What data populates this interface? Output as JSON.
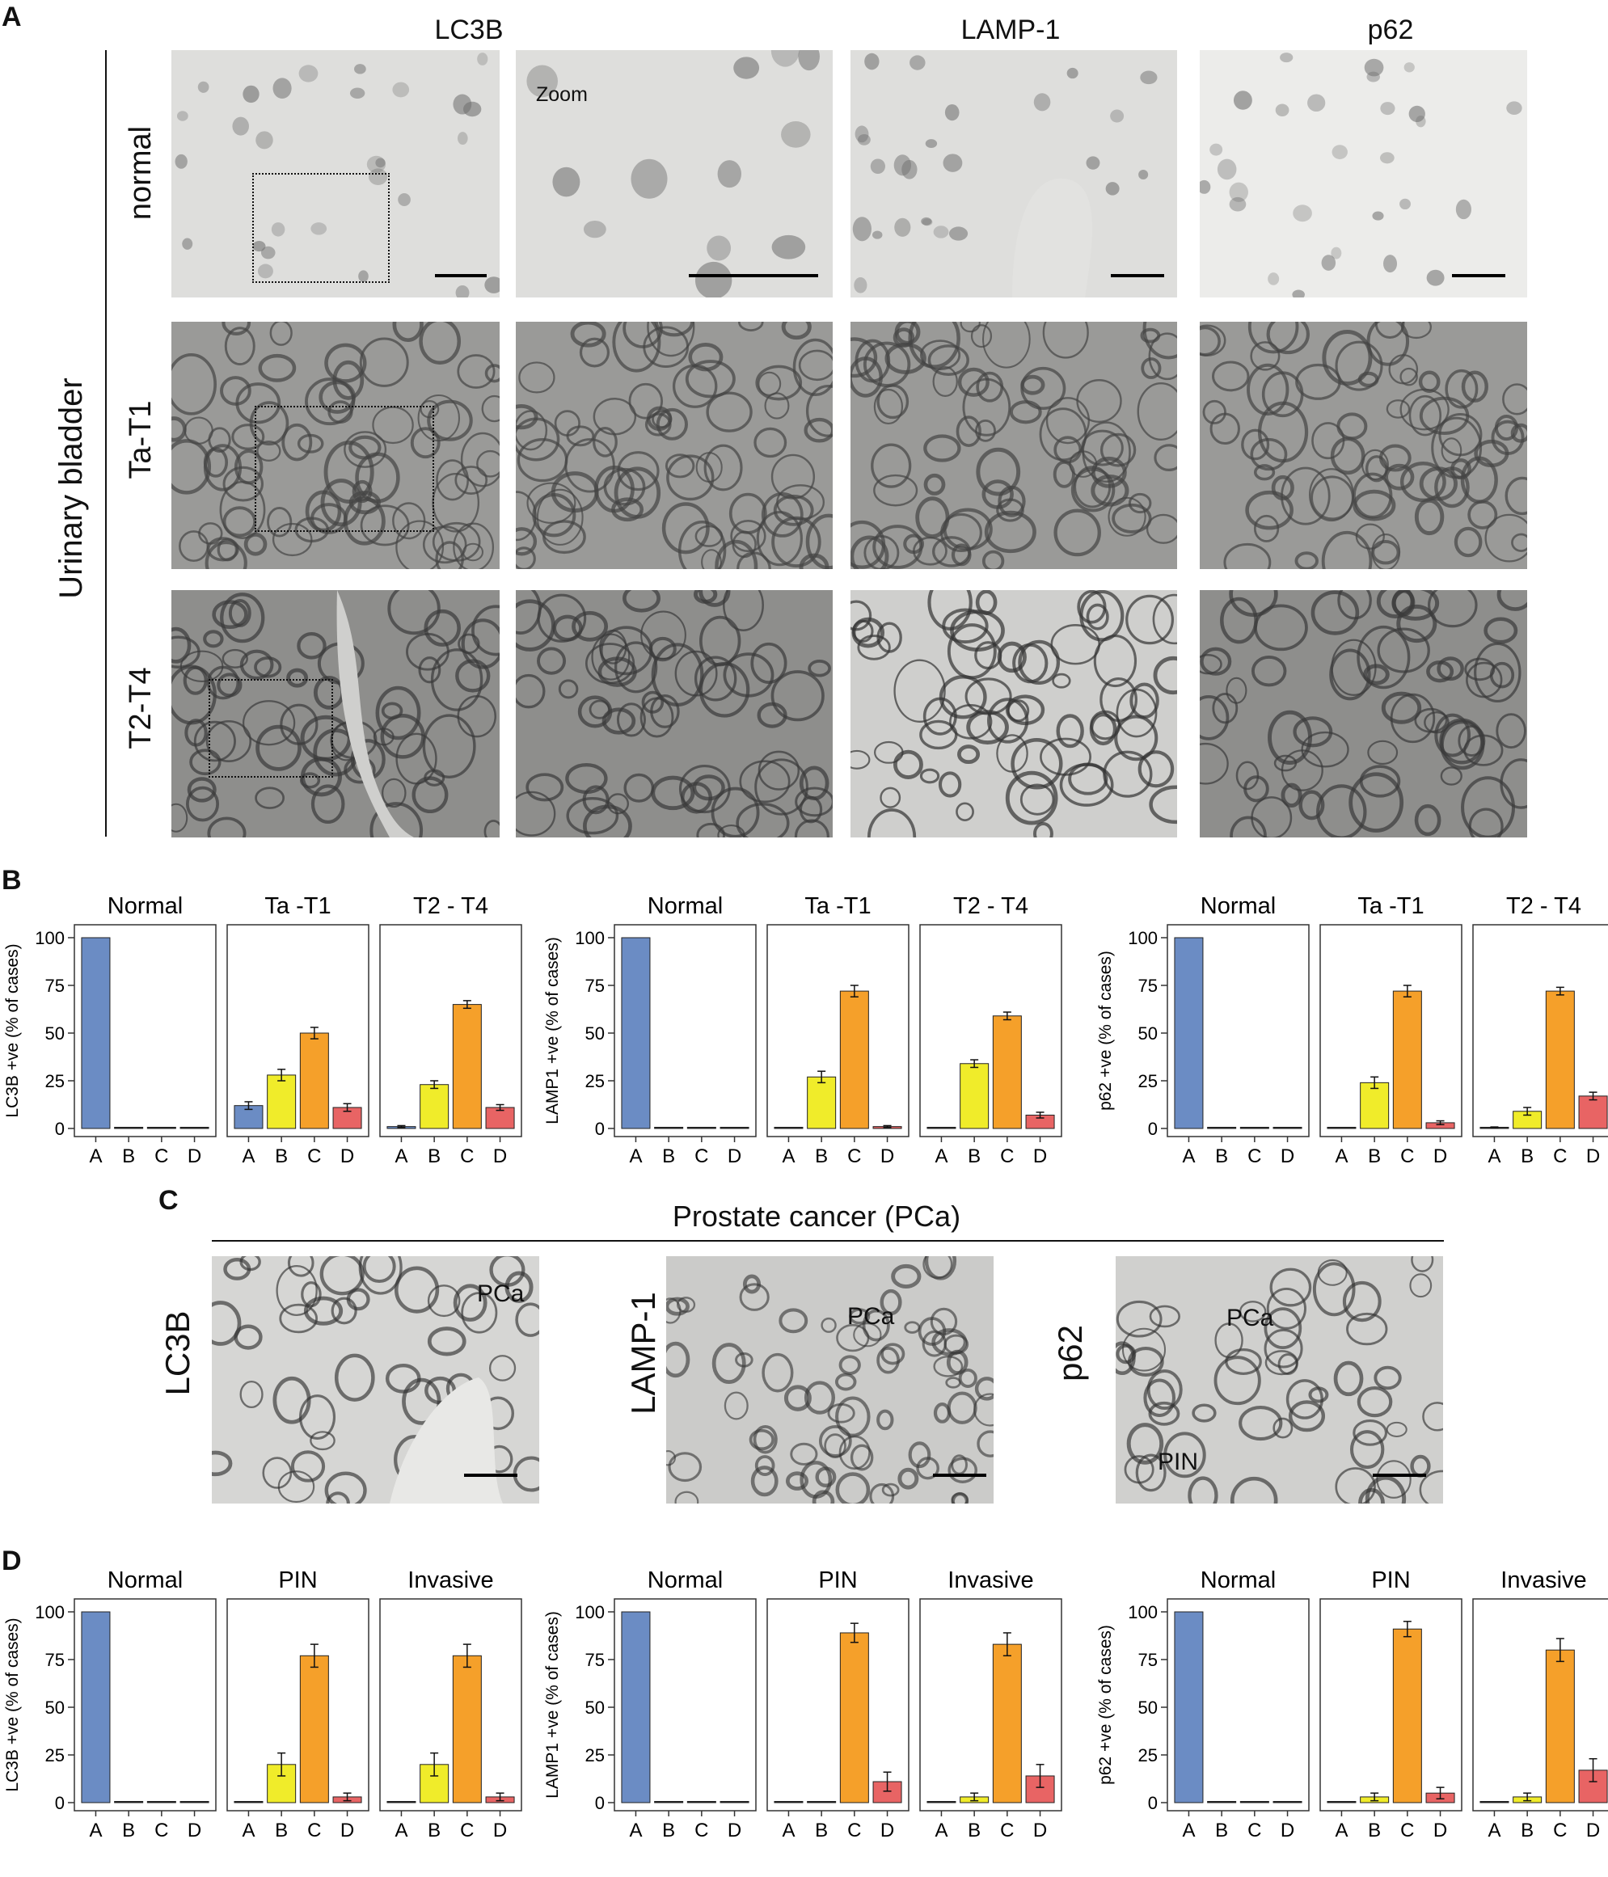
{
  "panel_letters": {
    "a": "A",
    "b": "B",
    "c": "C",
    "d": "D"
  },
  "panel_a": {
    "column_headers": [
      "LC3B",
      "LAMP-1",
      "p62"
    ],
    "row_headers": [
      "normal",
      "Ta-T1",
      "T2-T4"
    ],
    "side_label": "Urinary bladder",
    "zoom_label": "Zoom"
  },
  "panel_c": {
    "title": "Prostate cancer (PCa)",
    "stain_labels": [
      "LC3B",
      "LAMP-1",
      "p62"
    ],
    "pca_label": "PCa",
    "pin_label": "PIN"
  },
  "colors": {
    "A": "#6b8cc4",
    "B": "#f0ec2a",
    "C": "#f5a02a",
    "D": "#e86464"
  },
  "chart_data": [
    {
      "type": "bar",
      "panel": "B",
      "ylabel": "LC3B +ve (% of cases)",
      "ylim": [
        0,
        100
      ],
      "yticks": [
        0,
        25,
        50,
        75,
        100
      ],
      "categories": [
        "A",
        "B",
        "C",
        "D"
      ],
      "groups": [
        {
          "name": "Normal",
          "values": [
            100,
            0,
            0,
            0
          ],
          "errors": [
            0,
            0,
            0,
            0
          ]
        },
        {
          "name": "Ta -T1",
          "values": [
            12,
            28,
            50,
            11
          ],
          "errors": [
            2,
            3,
            3,
            2
          ]
        },
        {
          "name": "T2 - T4",
          "values": [
            1,
            23,
            65,
            11
          ],
          "errors": [
            0.5,
            2,
            2,
            1.5
          ]
        }
      ]
    },
    {
      "type": "bar",
      "panel": "B",
      "ylabel": "LAMP1 +ve (% of cases)",
      "ylim": [
        0,
        100
      ],
      "yticks": [
        0,
        25,
        50,
        75,
        100
      ],
      "categories": [
        "A",
        "B",
        "C",
        "D"
      ],
      "groups": [
        {
          "name": "Normal",
          "values": [
            100,
            0,
            0,
            0
          ],
          "errors": [
            0,
            0,
            0,
            0
          ]
        },
        {
          "name": "Ta -T1",
          "values": [
            0,
            27,
            72,
            1
          ],
          "errors": [
            0,
            3,
            3,
            0.5
          ]
        },
        {
          "name": "T2 - T4",
          "values": [
            0,
            34,
            59,
            7
          ],
          "errors": [
            0,
            2,
            2,
            1.5
          ]
        }
      ]
    },
    {
      "type": "bar",
      "panel": "B",
      "ylabel": "p62 +ve (% of cases)",
      "ylim": [
        0,
        100
      ],
      "yticks": [
        0,
        25,
        50,
        75,
        100
      ],
      "categories": [
        "A",
        "B",
        "C",
        "D"
      ],
      "groups": [
        {
          "name": "Normal",
          "values": [
            100,
            0,
            0,
            0
          ],
          "errors": [
            0,
            0,
            0,
            0
          ]
        },
        {
          "name": "Ta -T1",
          "values": [
            0,
            24,
            72,
            3
          ],
          "errors": [
            0,
            3,
            3,
            1
          ]
        },
        {
          "name": "T2 - T4",
          "values": [
            0.5,
            9,
            72,
            17
          ],
          "errors": [
            0.3,
            2,
            2,
            2
          ]
        }
      ]
    },
    {
      "type": "bar",
      "panel": "D",
      "ylabel": "LC3B +ve (% of cases)",
      "ylim": [
        0,
        100
      ],
      "yticks": [
        0,
        25,
        50,
        75,
        100
      ],
      "categories": [
        "A",
        "B",
        "C",
        "D"
      ],
      "groups": [
        {
          "name": "Normal",
          "values": [
            100,
            0,
            0,
            0
          ],
          "errors": [
            0,
            0,
            0,
            0
          ]
        },
        {
          "name": "PIN",
          "values": [
            0,
            20,
            77,
            3
          ],
          "errors": [
            0,
            6,
            6,
            2
          ]
        },
        {
          "name": "Invasive",
          "values": [
            0,
            20,
            77,
            3
          ],
          "errors": [
            0,
            6,
            6,
            2
          ]
        }
      ]
    },
    {
      "type": "bar",
      "panel": "D",
      "ylabel": "LAMP1 +ve (% of cases)",
      "ylim": [
        0,
        100
      ],
      "yticks": [
        0,
        25,
        50,
        75,
        100
      ],
      "categories": [
        "A",
        "B",
        "C",
        "D"
      ],
      "groups": [
        {
          "name": "Normal",
          "values": [
            100,
            0,
            0,
            0
          ],
          "errors": [
            0,
            0,
            0,
            0
          ]
        },
        {
          "name": "PIN",
          "values": [
            0,
            0,
            89,
            11
          ],
          "errors": [
            0,
            0,
            5,
            5
          ]
        },
        {
          "name": "Invasive",
          "values": [
            0,
            3,
            83,
            14
          ],
          "errors": [
            0,
            2,
            6,
            6
          ]
        }
      ]
    },
    {
      "type": "bar",
      "panel": "D",
      "ylabel": "p62 +ve (% of cases)",
      "ylim": [
        0,
        100
      ],
      "yticks": [
        0,
        25,
        50,
        75,
        100
      ],
      "categories": [
        "A",
        "B",
        "C",
        "D"
      ],
      "groups": [
        {
          "name": "Normal",
          "values": [
            100,
            0,
            0,
            0
          ],
          "errors": [
            0,
            0,
            0,
            0
          ]
        },
        {
          "name": "PIN",
          "values": [
            0,
            3,
            91,
            5
          ],
          "errors": [
            0,
            2,
            4,
            3
          ]
        },
        {
          "name": "Invasive",
          "values": [
            0,
            3,
            80,
            17
          ],
          "errors": [
            0,
            2,
            6,
            6
          ]
        }
      ]
    }
  ]
}
